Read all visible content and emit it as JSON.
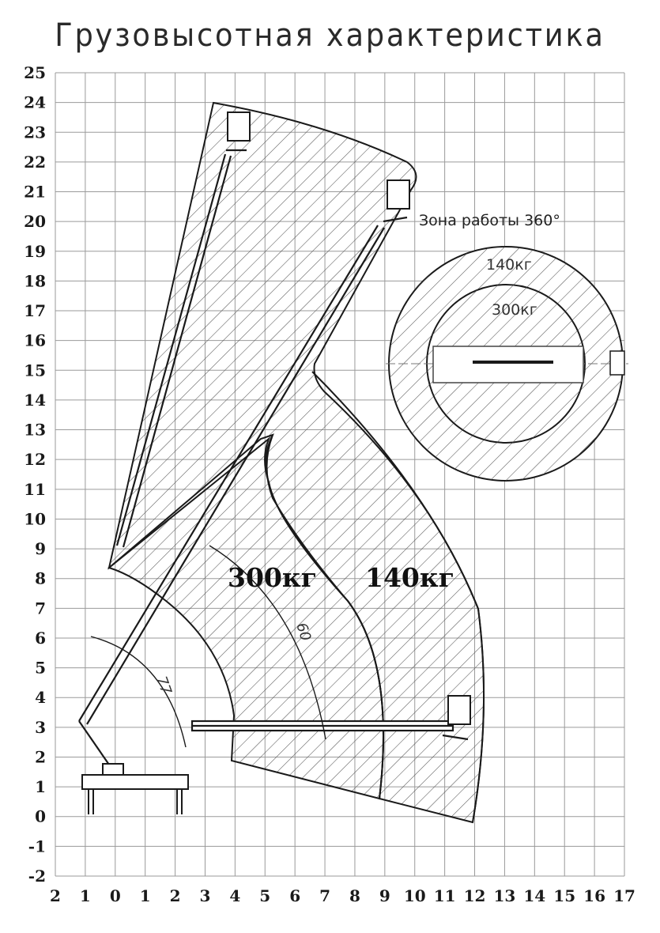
{
  "title": "Грузовысотная характеристика",
  "x_ticks": [
    "2",
    "1",
    "0",
    "1",
    "2",
    "3",
    "4",
    "5",
    "6",
    "7",
    "8",
    "9",
    "10",
    "11",
    "12",
    "13",
    "14",
    "15",
    "16",
    "17"
  ],
  "y_ticks": [
    "25",
    "24",
    "23",
    "22",
    "21",
    "20",
    "19",
    "18",
    "17",
    "16",
    "15",
    "14",
    "13",
    "12",
    "11",
    "10",
    "9",
    "8",
    "7",
    "6",
    "5",
    "4",
    "3",
    "2",
    "1",
    "0",
    "-1",
    "-2"
  ],
  "zones": {
    "outer": "140кг",
    "inner": "300кг"
  },
  "rotation": {
    "label": "Зона работы 360°",
    "outer": "140кг",
    "inner": "300кг"
  },
  "angles": {
    "max_boom": "77",
    "second": "60"
  },
  "colors": {
    "line": "#1a1a1a",
    "grid": "#9a9a9a",
    "hatch": "#555555"
  }
}
